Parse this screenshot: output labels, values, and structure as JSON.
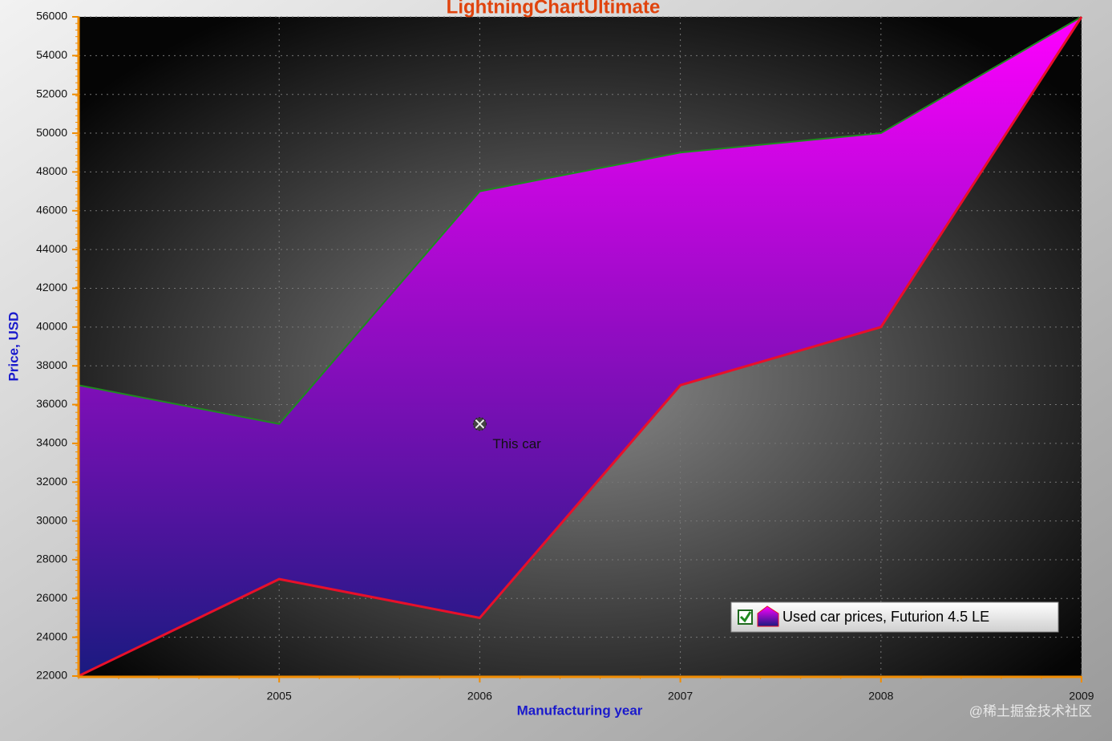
{
  "chart_data": {
    "type": "range-area",
    "title": "LightningChartUltimate",
    "x_label": "Manufacturing year",
    "y_label": "Price, USD",
    "x": [
      2004,
      2005,
      2006,
      2007,
      2008,
      2009
    ],
    "series": [
      {
        "name": "Used car prices, Futurion 4.5 LE",
        "high": [
          37000,
          35000,
          47000,
          49000,
          50000,
          56000
        ],
        "low": [
          22000,
          27000,
          25000,
          37000,
          40000,
          56000
        ],
        "high_color": "#1f8a1f",
        "low_color": "#e8102a",
        "fill_top_color": "#ff00ff",
        "fill_bottom_color": "#1a1a80"
      }
    ],
    "xlim": [
      2004,
      2009
    ],
    "xticks": [
      2005,
      2006,
      2007,
      2008,
      2009
    ],
    "ylim": [
      22000,
      56000
    ],
    "yticks": [
      22000,
      24000,
      26000,
      28000,
      30000,
      32000,
      34000,
      36000,
      38000,
      40000,
      42000,
      44000,
      46000,
      48000,
      50000,
      52000,
      54000,
      56000
    ],
    "grid": true,
    "legend": "lower right",
    "annotations": [
      {
        "text": "This car",
        "x": 2006,
        "y": 35000
      }
    ],
    "watermark": "@稀土掘金技术社区"
  }
}
